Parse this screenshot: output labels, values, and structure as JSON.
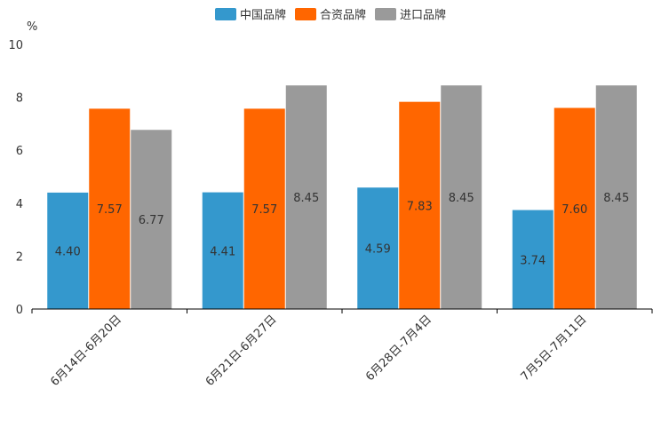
{
  "chart_data": {
    "type": "bar",
    "title": "",
    "unit_label": "%",
    "xlabel": "",
    "ylabel": "%",
    "ylim": [
      0,
      10
    ],
    "yticks": [
      0,
      2,
      4,
      6,
      8,
      10
    ],
    "grid": false,
    "legend_position": "top-center",
    "categories": [
      "6月14日-6月20日",
      "6月21日-6月27日",
      "6月28日-7月4日",
      "7月5日-7月11日"
    ],
    "series": [
      {
        "name": "中国品牌",
        "color": "#3498cd",
        "values": [
          4.4,
          4.41,
          4.59,
          3.74
        ],
        "labels": [
          "4.40",
          "4.41",
          "4.59",
          "3.74"
        ]
      },
      {
        "name": "合资品牌",
        "color": "#ff6600",
        "values": [
          7.57,
          7.57,
          7.83,
          7.6
        ],
        "labels": [
          "7.57",
          "7.57",
          "7.83",
          "7.60"
        ]
      },
      {
        "name": "进口品牌",
        "color": "#9a9a9a",
        "values": [
          6.77,
          8.45,
          8.45,
          8.45
        ],
        "labels": [
          "6.77",
          "8.45",
          "8.45",
          "8.45"
        ]
      }
    ]
  }
}
